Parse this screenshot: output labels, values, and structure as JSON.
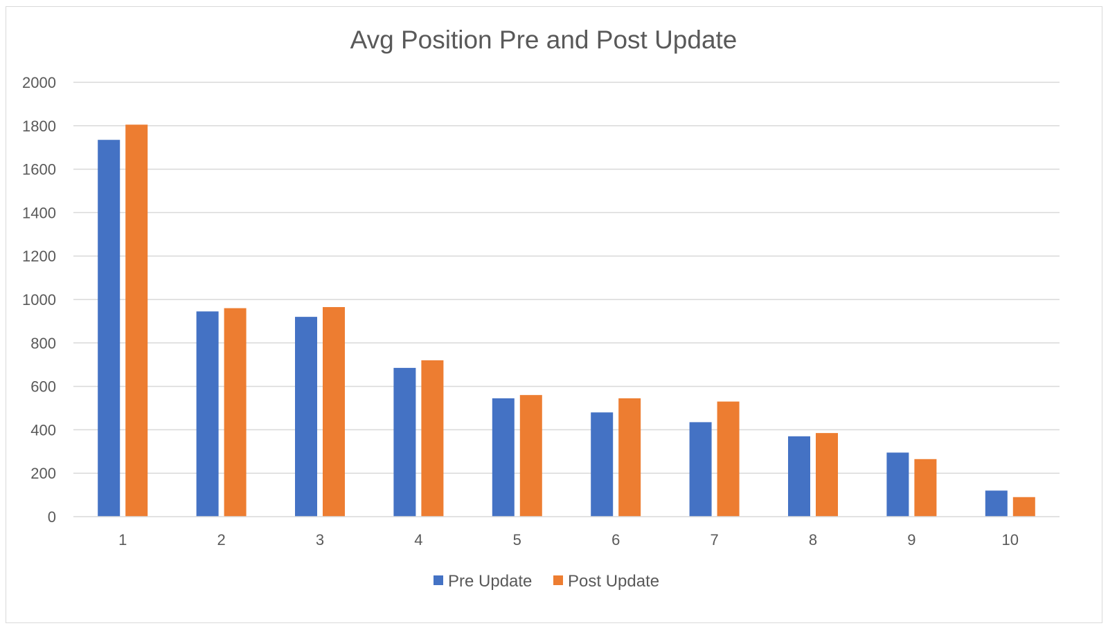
{
  "chart_data": {
    "type": "bar",
    "title": "Avg Position Pre and Post Update",
    "xlabel": "",
    "ylabel": "",
    "categories": [
      "1",
      "2",
      "3",
      "4",
      "5",
      "6",
      "7",
      "8",
      "9",
      "10"
    ],
    "series": [
      {
        "name": "Pre Update",
        "color": "#4472c4",
        "values": [
          1735,
          945,
          920,
          685,
          545,
          480,
          435,
          370,
          295,
          120
        ]
      },
      {
        "name": "Post Update",
        "color": "#ed7d31",
        "values": [
          1805,
          960,
          965,
          720,
          560,
          545,
          530,
          385,
          265,
          90
        ]
      }
    ],
    "ylim": [
      0,
      2000
    ],
    "yticks": [
      "0",
      "200",
      "400",
      "600",
      "800",
      "1000",
      "1200",
      "1400",
      "1600",
      "1800",
      "2000"
    ],
    "grid": true,
    "legend_position": "bottom"
  }
}
